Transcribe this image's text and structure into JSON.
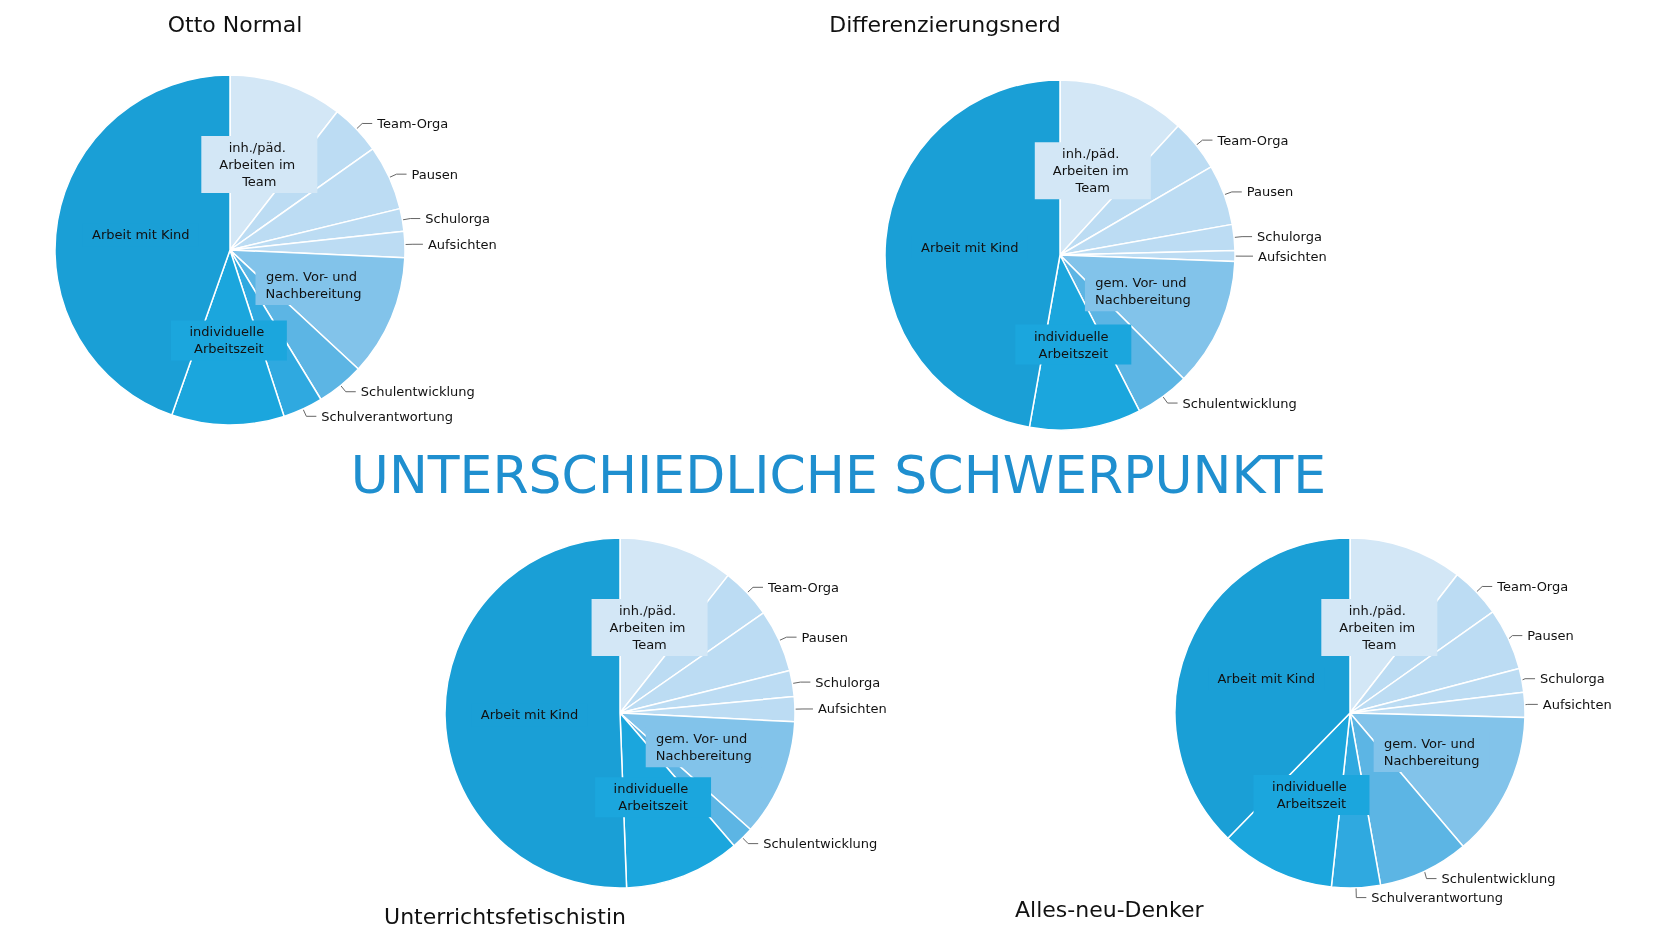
{
  "chart_data": [
    {
      "type": "other",
      "title": "UNTERSCHIEDLICHE SCHWERPUNKTE"
    },
    {
      "type": "pie",
      "title": "Otto Normal",
      "categories": [
        "inh./päd. Arbeiten im Team",
        "Team-Orga",
        "Pausen",
        "Schulorga",
        "Aufsichten",
        "gem. Vor- und Nachbereitung",
        "Schulentwicklung",
        "Schulverantwortung",
        "individuelle Arbeitszeit",
        "Arbeit mit Kind"
      ],
      "values": [
        10.5,
        4.7,
        6,
        2.1,
        2.4,
        11.2,
        4.4,
        3.7,
        10.4,
        44.6
      ],
      "colors": [
        "#d3e7f6",
        "#bcdcf3",
        "#bcdcf3",
        "#bcdcf3",
        "#bcdcf3",
        "#82c3ea",
        "#5cb5e4",
        "#2fa9e0",
        "#1ba6dd",
        "#1a9fd6"
      ]
    },
    {
      "type": "pie",
      "title": "Differenzierungsnerd",
      "categories": [
        "inh./päd. Arbeiten im Team",
        "Team-Orga",
        "Pausen",
        "Schulorga",
        "Aufsichten",
        "gem. Vor- und Nachbereitung",
        "Schulentwicklung",
        "individuelle Arbeitszeit",
        "Arbeit mit Kind"
      ],
      "values": [
        11.8,
        4.8,
        5.6,
        2.4,
        1,
        11.9,
        5,
        10.3,
        47.2
      ],
      "colors": [
        "#d3e7f6",
        "#bcdcf3",
        "#bcdcf3",
        "#bcdcf3",
        "#bcdcf3",
        "#82c3ea",
        "#5cb5e4",
        "#1ba6dd",
        "#1a9fd6"
      ]
    },
    {
      "type": "pie",
      "title": "Unterrichtsfetischistin",
      "categories": [
        "inh./päd. Arbeiten im Team",
        "Team-Orga",
        "Pausen",
        "Schulorga",
        "Aufsichten",
        "gem. Vor- und Nachbereitung",
        "Schulentwicklung",
        "individuelle Arbeitszeit",
        "Arbeit mit Kind"
      ],
      "values": [
        10.6,
        4.7,
        5.8,
        2.4,
        2.3,
        10.8,
        2.1,
        10.7,
        50.6
      ],
      "colors": [
        "#d3e7f6",
        "#bcdcf3",
        "#bcdcf3",
        "#bcdcf3",
        "#bcdcf3",
        "#82c3ea",
        "#5cb5e4",
        "#1ba6dd",
        "#1a9fd6"
      ]
    },
    {
      "type": "pie",
      "title": "Alles-neu-Denker",
      "categories": [
        "inh./päd. Arbeiten im Team",
        "Team-Orga",
        "Pausen",
        "Schulorga",
        "Aufsichten",
        "gem. Vor- und Nachbereitung",
        "Schulentwicklung",
        "Schulverantwortung",
        "individuelle Arbeitszeit",
        "Arbeit mit Kind"
      ],
      "values": [
        10.5,
        4.7,
        5.7,
        2.2,
        2.3,
        13.4,
        8.4,
        4.5,
        10.6,
        37.7
      ],
      "colors": [
        "#d3e7f6",
        "#bcdcf3",
        "#bcdcf3",
        "#bcdcf3",
        "#bcdcf3",
        "#82c3ea",
        "#5cb5e4",
        "#2fa9e0",
        "#1ba6dd",
        "#1a9fd6"
      ]
    }
  ]
}
